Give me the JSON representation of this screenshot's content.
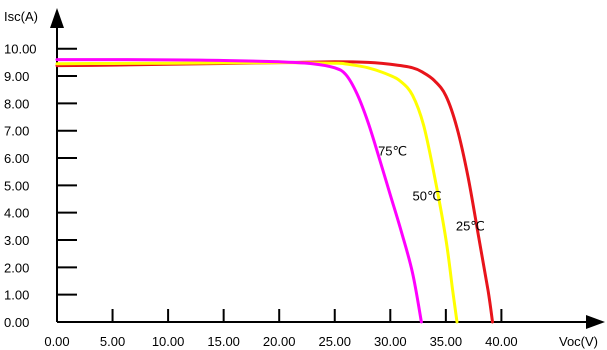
{
  "chart_data": {
    "type": "line",
    "title": "",
    "xlabel": "Voc(V)",
    "ylabel": "Isc(A)",
    "xlim": [
      0,
      45
    ],
    "ylim": [
      0,
      10.5
    ],
    "x_ticks": [
      "0.00",
      "5.00",
      "10.00",
      "15.00",
      "20.00",
      "25.00",
      "30.00",
      "35.00",
      "40.00"
    ],
    "y_ticks": [
      "0.00",
      "1.00",
      "2.00",
      "3.00",
      "4.00",
      "5.00",
      "6.00",
      "7.00",
      "8.00",
      "9.00",
      "10.00"
    ],
    "grid": false,
    "legend": "none",
    "series": [
      {
        "name": "25℃",
        "color": "#e8141b",
        "points": [
          [
            0,
            9.38
          ],
          [
            5,
            9.4
          ],
          [
            10,
            9.43
          ],
          [
            15,
            9.46
          ],
          [
            20,
            9.49
          ],
          [
            25,
            9.52
          ],
          [
            28,
            9.5
          ],
          [
            30,
            9.43
          ],
          [
            32,
            9.3
          ],
          [
            33,
            9.12
          ],
          [
            34,
            8.82
          ],
          [
            35,
            8.28
          ],
          [
            36,
            7.1
          ],
          [
            37,
            5.3
          ],
          [
            38,
            3.0
          ],
          [
            38.8,
            1.15
          ],
          [
            39.2,
            0
          ]
        ]
      },
      {
        "name": "50℃",
        "color": "#ffff00",
        "points": [
          [
            0,
            9.45
          ],
          [
            5,
            9.46
          ],
          [
            10,
            9.47
          ],
          [
            15,
            9.48
          ],
          [
            20,
            9.49
          ],
          [
            25,
            9.47
          ],
          [
            26,
            9.44
          ],
          [
            28,
            9.3
          ],
          [
            30,
            9.02
          ],
          [
            31,
            8.78
          ],
          [
            32,
            8.3
          ],
          [
            33,
            7.2
          ],
          [
            34,
            5.3
          ],
          [
            35,
            3.05
          ],
          [
            35.6,
            1.2
          ],
          [
            36,
            0
          ]
        ]
      },
      {
        "name": "75℃",
        "color": "#ff00ff",
        "points": [
          [
            0,
            9.6
          ],
          [
            5,
            9.6
          ],
          [
            10,
            9.59
          ],
          [
            15,
            9.57
          ],
          [
            20,
            9.52
          ],
          [
            23,
            9.45
          ],
          [
            25,
            9.3
          ],
          [
            26,
            9.05
          ],
          [
            27,
            8.35
          ],
          [
            28,
            7.3
          ],
          [
            29,
            6.0
          ],
          [
            30,
            4.65
          ],
          [
            31,
            3.3
          ],
          [
            32,
            1.8
          ],
          [
            32.8,
            0
          ]
        ]
      }
    ],
    "annotations": [
      {
        "text": "75℃",
        "x": 28.9,
        "y": 6.1
      },
      {
        "text": "50℃",
        "x": 32.0,
        "y": 4.45
      },
      {
        "text": "25℃",
        "x": 35.9,
        "y": 3.35
      }
    ]
  }
}
